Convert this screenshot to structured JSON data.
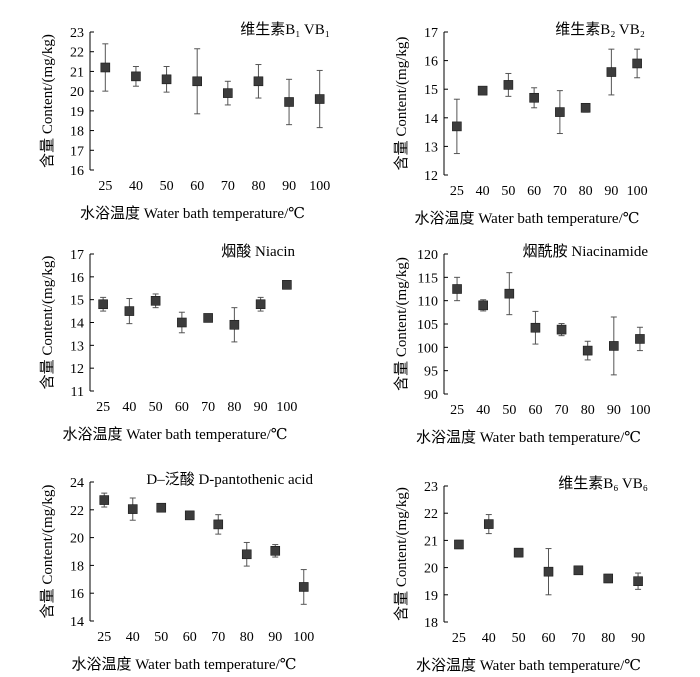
{
  "chart_data": [
    {
      "type": "scatter",
      "title": "维生素B₁ VB₁",
      "xlabel": "水浴温度  Water bath temperature/℃",
      "ylabel": "含量 Content/(mg/kg)",
      "categories": [
        "25",
        "40",
        "50",
        "60",
        "70",
        "80",
        "90",
        "100"
      ],
      "values": [
        21.2,
        20.75,
        20.6,
        20.5,
        19.9,
        20.5,
        19.45,
        19.6
      ],
      "errors": [
        1.2,
        0.5,
        0.65,
        1.65,
        0.6,
        0.85,
        1.15,
        1.45
      ],
      "ylim": [
        16,
        23
      ],
      "yticks": [
        16,
        17,
        18,
        19,
        20,
        21,
        22,
        23
      ]
    },
    {
      "type": "scatter",
      "title": "维生素B₂ VB₂",
      "xlabel": "水浴温度  Water bath temperature/℃",
      "ylabel": "含量 Content/(mg/kg)",
      "categories": [
        "25",
        "40",
        "50",
        "60",
        "70",
        "80",
        "90",
        "100"
      ],
      "values": [
        13.7,
        14.95,
        15.15,
        14.7,
        14.2,
        14.35,
        15.6,
        15.9
      ],
      "errors": [
        0.95,
        0.12,
        0.4,
        0.35,
        0.75,
        0.15,
        0.8,
        0.5
      ],
      "ylim": [
        12,
        17
      ],
      "yticks": [
        12,
        13,
        14,
        15,
        16,
        17
      ]
    },
    {
      "type": "scatter",
      "title": "烟酸 Niacin",
      "xlabel": "水浴温度  Water bath temperature/℃",
      "ylabel": "含量 Content/(mg/kg)",
      "categories": [
        "25",
        "40",
        "50",
        "60",
        "70",
        "80",
        "90",
        "100"
      ],
      "values": [
        14.8,
        14.5,
        14.95,
        14.0,
        14.2,
        13.9,
        14.8,
        15.65
      ],
      "errors": [
        0.3,
        0.55,
        0.3,
        0.45,
        0.1,
        0.75,
        0.3,
        0.1
      ],
      "ylim": [
        11,
        17
      ],
      "yticks": [
        11,
        12,
        13,
        14,
        15,
        16,
        17
      ]
    },
    {
      "type": "scatter",
      "title": "烟酰胺 Niacinamide",
      "xlabel": "水浴温度  Water bath temperature/℃",
      "ylabel": "含量 Content/(mg/kg)",
      "categories": [
        "25",
        "40",
        "50",
        "60",
        "70",
        "80",
        "90",
        "100"
      ],
      "values": [
        112.5,
        109.0,
        111.5,
        104.2,
        103.8,
        99.3,
        100.3,
        101.8
      ],
      "errors": [
        2.5,
        1.2,
        4.5,
        3.5,
        1.3,
        2.0,
        6.2,
        2.5
      ],
      "ylim": [
        90,
        120
      ],
      "yticks": [
        90,
        95,
        100,
        105,
        110,
        115,
        120
      ]
    },
    {
      "type": "scatter",
      "title": "D–泛酸 D-pantothenic acid",
      "xlabel": "水浴温度  Water bath temperature/℃",
      "ylabel": "含量 Content/(mg/kg)",
      "categories": [
        "25",
        "40",
        "50",
        "60",
        "70",
        "80",
        "90",
        "100"
      ],
      "values": [
        22.7,
        22.05,
        22.15,
        21.6,
        20.95,
        18.8,
        19.05,
        16.45
      ],
      "errors": [
        0.5,
        0.8,
        0.2,
        0.15,
        0.7,
        0.85,
        0.45,
        1.25
      ],
      "ylim": [
        14,
        24
      ],
      "yticks": [
        14,
        16,
        18,
        20,
        22,
        24
      ]
    },
    {
      "type": "scatter",
      "title": "维生素B₆ VB₆",
      "xlabel": "水浴温度  Water bath temperature/℃",
      "ylabel": "含量 Content/(mg/kg)",
      "categories": [
        "25",
        "40",
        "50",
        "60",
        "70",
        "80",
        "90"
      ],
      "values": [
        20.85,
        21.6,
        20.55,
        19.85,
        19.9,
        19.6,
        19.5
      ],
      "errors": [
        0.15,
        0.35,
        0.15,
        0.85,
        0.15,
        0.15,
        0.3
      ],
      "ylim": [
        18,
        23
      ],
      "yticks": [
        18,
        19,
        20,
        21,
        22,
        23
      ]
    }
  ]
}
